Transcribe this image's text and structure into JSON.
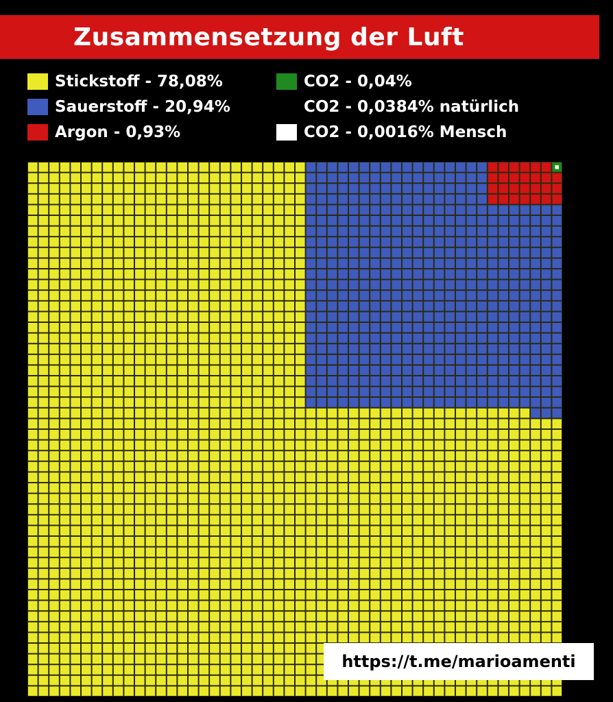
{
  "title": "Zusammensetzung der Luft",
  "legend": [
    {
      "label": "Stickstoff - 78,08%",
      "color": "#eaea2a"
    },
    {
      "label": "Sauerstoff - 20,94%",
      "color": "#3f5bbd"
    },
    {
      "label": "Argon - 0,93%",
      "color": "#d21414"
    },
    {
      "label": "CO2 - 0,04%",
      "color": "#1f8a1f"
    },
    {
      "label": "CO2 - 0,0384% natürlich",
      "color": ""
    },
    {
      "label": "CO2 - 0,0016% Mensch",
      "color": "#ffffff"
    }
  ],
  "watermark": "https://t.me/marioamenti",
  "chart_data": {
    "type": "waffle",
    "grid": [
      50,
      50
    ],
    "series": [
      {
        "name": "Stickstoff",
        "value": 78.08,
        "color": "#eaea2a"
      },
      {
        "name": "Sauerstoff",
        "value": 20.94,
        "color": "#3f5bbd"
      },
      {
        "name": "Argon",
        "value": 0.93,
        "color": "#d21414"
      },
      {
        "name": "CO2",
        "value": 0.04,
        "color": "#1f8a1f"
      },
      {
        "name": "CO2 Mensch",
        "value": 0.0016,
        "color": "#ffffff"
      }
    ]
  }
}
